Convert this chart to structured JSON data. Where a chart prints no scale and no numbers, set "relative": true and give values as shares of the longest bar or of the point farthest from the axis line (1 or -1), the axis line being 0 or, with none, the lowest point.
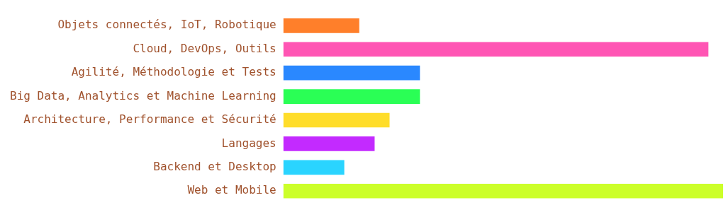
{
  "chart_data": {
    "type": "bar",
    "orientation": "horizontal",
    "relative": true,
    "categories": [
      "Objets connectés, IoT, Robotique",
      "Cloud, DevOps, Outils",
      "Agilité, Méthodologie et Tests",
      "Big Data, Analytics et Machine Learning",
      "Architecture, Performance et Sécurité",
      "Langages",
      "Backend et Desktop",
      "Web et Mobile"
    ],
    "values": [
      0.172,
      0.966,
      0.31,
      0.31,
      0.241,
      0.207,
      0.138,
      1
    ],
    "colors": [
      "#ff7f2a",
      "#ff55b4",
      "#2a88ff",
      "#2aff55",
      "#ffdd2a",
      "#c32aff",
      "#2ad4ff",
      "#ccff2a"
    ],
    "grid": false,
    "legend": false
  }
}
